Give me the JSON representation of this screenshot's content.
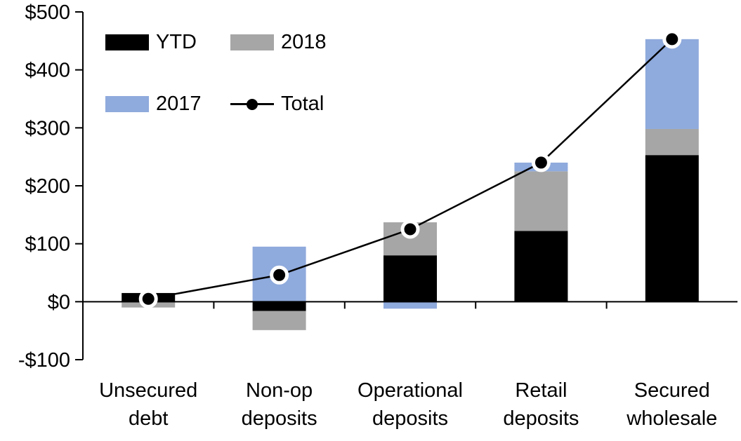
{
  "chart_data": {
    "type": "bar",
    "stacked": true,
    "title": "",
    "xlabel": "",
    "ylabel": "",
    "categories": [
      "Unsecured\ndebt",
      "Non-op\ndeposits",
      "Operational\ndeposits",
      "Retail\ndeposits",
      "Secured\nwholesale"
    ],
    "series": [
      {
        "name": "YTD",
        "color": "#000000",
        "values": [
          15,
          -16,
          80,
          122,
          253
        ]
      },
      {
        "name": "2018",
        "color": "#a6a6a6",
        "values": [
          -10,
          -33,
          57,
          103,
          45
        ]
      },
      {
        "name": "2017",
        "color": "#8faadc",
        "values": [
          0,
          95,
          -12,
          15,
          155
        ]
      }
    ],
    "line_series": {
      "name": "Total",
      "color": "#000000",
      "values": [
        5,
        46,
        125,
        240,
        453
      ]
    },
    "ylim": [
      -100,
      500
    ],
    "yticks": [
      -100,
      0,
      100,
      200,
      300,
      400,
      500
    ],
    "ytick_labels": [
      "-$100",
      "$0",
      "$100",
      "$200",
      "$300",
      "$400",
      "$500"
    ],
    "grid": false,
    "legend_position": "top-left",
    "colors": {
      "axis": "#000000",
      "marker_fill": "#000000",
      "marker_ring": "#ffffff",
      "background": "#ffffff"
    }
  }
}
